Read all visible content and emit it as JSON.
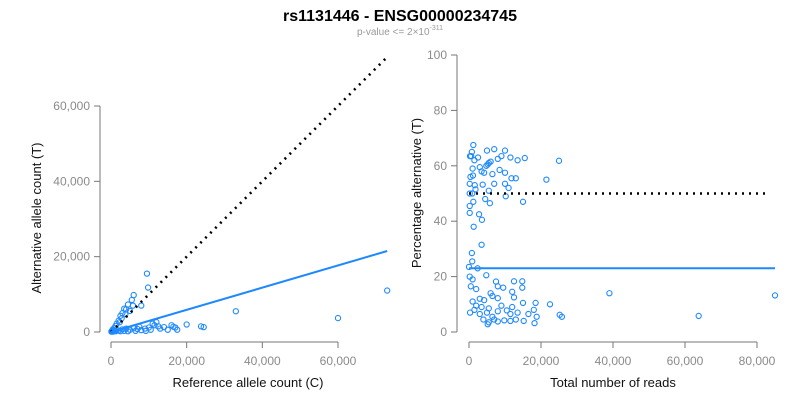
{
  "title": "rs1131446 - ENSG00000234745",
  "subtitle": {
    "prefix": "p-value <= 2",
    "times": "×",
    "base": "10",
    "exponent": "-311"
  },
  "colors": {
    "points": "#1e88ff",
    "fit": "#1e88ff",
    "reference": "#000000",
    "axis": "#777777",
    "tick_text": "#8a8a8a"
  },
  "chart_data": [
    {
      "type": "scatter",
      "xlabel": "Reference allele count (C)",
      "ylabel": "Alternative allele count (T)",
      "xlim": [
        0,
        73000
      ],
      "ylim": [
        0,
        73000
      ],
      "xticks": [
        0,
        20000,
        40000,
        60000
      ],
      "yticks": [
        0,
        20000,
        40000,
        60000
      ],
      "xtick_labels": [
        "0",
        "20,000",
        "40,000",
        "60,000"
      ],
      "ytick_labels": [
        "0",
        "20,000",
        "40,000",
        "60,000"
      ],
      "reference_line": {
        "style": "dotted",
        "from": [
          0,
          0
        ],
        "to": [
          73000,
          73000
        ]
      },
      "fit_line": {
        "style": "solid",
        "from": [
          0,
          0
        ],
        "to": [
          73000,
          21500
        ]
      },
      "points": [
        [
          9500,
          15500
        ],
        [
          9800,
          11800
        ],
        [
          6000,
          9800
        ],
        [
          5500,
          8500
        ],
        [
          4500,
          7300
        ],
        [
          5800,
          7000
        ],
        [
          8000,
          7000
        ],
        [
          3500,
          6200
        ],
        [
          4000,
          6000
        ],
        [
          5000,
          5600
        ],
        [
          3000,
          5000
        ],
        [
          3800,
          4700
        ],
        [
          2500,
          4300
        ],
        [
          2800,
          3600
        ],
        [
          2000,
          3000
        ],
        [
          2300,
          2600
        ],
        [
          1500,
          2200
        ],
        [
          1200,
          1600
        ],
        [
          800,
          1000
        ],
        [
          500,
          700
        ],
        [
          300,
          400
        ],
        [
          200,
          200
        ],
        [
          100,
          100
        ],
        [
          1000,
          300
        ],
        [
          1500,
          500
        ],
        [
          2000,
          400
        ],
        [
          3000,
          700
        ],
        [
          4000,
          900
        ],
        [
          5000,
          600
        ],
        [
          6000,
          1000
        ],
        [
          7000,
          800
        ],
        [
          8000,
          500
        ],
        [
          9000,
          900
        ],
        [
          10000,
          1200
        ],
        [
          11000,
          2200
        ],
        [
          12000,
          2600
        ],
        [
          12500,
          1500
        ],
        [
          13000,
          900
        ],
        [
          14000,
          1300
        ],
        [
          15000,
          600
        ],
        [
          16000,
          1800
        ],
        [
          16500,
          1400
        ],
        [
          17500,
          600
        ],
        [
          17000,
          1200
        ],
        [
          20000,
          2000
        ],
        [
          23800,
          1500
        ],
        [
          24500,
          1300
        ],
        [
          33000,
          5500
        ],
        [
          60000,
          3700
        ],
        [
          73000,
          11000
        ],
        [
          6500,
          300
        ],
        [
          7500,
          1400
        ],
        [
          9200,
          300
        ],
        [
          10500,
          600
        ],
        [
          11500,
          1800
        ],
        [
          500,
          100
        ],
        [
          1200,
          200
        ],
        [
          2500,
          200
        ],
        [
          3500,
          300
        ],
        [
          4500,
          200
        ]
      ]
    },
    {
      "type": "scatter",
      "xlabel": "Total number of reads",
      "ylabel": "Percentage alternative (T)",
      "xlim": [
        0,
        85000
      ],
      "ylim": [
        0,
        100
      ],
      "xticks": [
        0,
        20000,
        40000,
        60000,
        80000
      ],
      "yticks": [
        0,
        20,
        40,
        60,
        80,
        100
      ],
      "xtick_labels": [
        "0",
        "20,000",
        "40,000",
        "60,000",
        "80,000"
      ],
      "ytick_labels": [
        "0",
        "20",
        "40",
        "60",
        "80",
        "100"
      ],
      "reference_line": {
        "style": "dotted",
        "y": 50,
        "x_range": [
          0,
          83000
        ]
      },
      "fit_line": {
        "style": "solid",
        "y": 23,
        "x_range": [
          0,
          85000
        ]
      },
      "points": [
        [
          1200,
          67.5
        ],
        [
          7000,
          66
        ],
        [
          5000,
          65.5
        ],
        [
          10000,
          65.5
        ],
        [
          800,
          65
        ],
        [
          300,
          63.5
        ],
        [
          600,
          63.5
        ],
        [
          2500,
          63
        ],
        [
          11500,
          63
        ],
        [
          15500,
          62.8
        ],
        [
          13500,
          62
        ],
        [
          25000,
          61.8
        ],
        [
          1500,
          62
        ],
        [
          9000,
          63.5
        ],
        [
          8000,
          62.5
        ],
        [
          5500,
          61
        ],
        [
          6000,
          61.5
        ],
        [
          4800,
          60
        ],
        [
          5200,
          60.5
        ],
        [
          3000,
          59.5
        ],
        [
          1000,
          59
        ],
        [
          8500,
          58.5
        ],
        [
          3500,
          58
        ],
        [
          4200,
          57.5
        ],
        [
          6500,
          57
        ],
        [
          10000,
          57.5
        ],
        [
          11800,
          55.5
        ],
        [
          13000,
          55.5
        ],
        [
          21500,
          55
        ],
        [
          1100,
          56.5
        ],
        [
          400,
          56
        ],
        [
          200,
          53.5
        ],
        [
          1600,
          53
        ],
        [
          3800,
          53.2
        ],
        [
          7000,
          53.5
        ],
        [
          10000,
          53.5
        ],
        [
          11000,
          52
        ],
        [
          1800,
          51.5
        ],
        [
          5500,
          51
        ],
        [
          200,
          50
        ],
        [
          900,
          50
        ],
        [
          10200,
          49
        ],
        [
          4500,
          48
        ],
        [
          15000,
          47
        ],
        [
          5800,
          46.5
        ],
        [
          1200,
          47
        ],
        [
          200,
          45.5
        ],
        [
          200,
          43
        ],
        [
          2800,
          42.5
        ],
        [
          3600,
          40.5
        ],
        [
          1300,
          38
        ],
        [
          3500,
          31.5
        ],
        [
          800,
          28.5
        ],
        [
          900,
          25.5
        ],
        [
          0,
          23.5
        ],
        [
          2400,
          23
        ],
        [
          4800,
          20.5
        ],
        [
          200,
          20
        ],
        [
          1000,
          19
        ],
        [
          7500,
          18.2
        ],
        [
          12500,
          18.3
        ],
        [
          14800,
          18.3
        ],
        [
          8000,
          16.5
        ],
        [
          9500,
          16
        ],
        [
          14800,
          16
        ],
        [
          500,
          16.5
        ],
        [
          2000,
          15.5
        ],
        [
          6000,
          14
        ],
        [
          12000,
          14.5
        ],
        [
          39000,
          14
        ],
        [
          85000,
          13.2
        ],
        [
          3000,
          12
        ],
        [
          6500,
          13
        ],
        [
          8000,
          12.2
        ],
        [
          12500,
          12.5
        ],
        [
          1000,
          11
        ],
        [
          4200,
          11.5
        ],
        [
          15000,
          10.5
        ],
        [
          18500,
          10.5
        ],
        [
          22500,
          10
        ],
        [
          2000,
          9.5
        ],
        [
          3500,
          9
        ],
        [
          5500,
          8.5
        ],
        [
          9000,
          9.5
        ],
        [
          12000,
          9
        ],
        [
          1500,
          8
        ],
        [
          5000,
          7
        ],
        [
          8000,
          7.5
        ],
        [
          10500,
          7.8
        ],
        [
          13500,
          7
        ],
        [
          18000,
          8
        ],
        [
          300,
          7
        ],
        [
          3000,
          6.5
        ],
        [
          6500,
          5.5
        ],
        [
          11500,
          6.5
        ],
        [
          16500,
          6.5
        ],
        [
          25200,
          6.2
        ],
        [
          18800,
          5.5
        ],
        [
          25800,
          5.5
        ],
        [
          63800,
          5.8
        ],
        [
          4000,
          4.5
        ],
        [
          7000,
          4.5
        ],
        [
          9800,
          4.2
        ],
        [
          13000,
          4.5
        ],
        [
          15200,
          4
        ],
        [
          5500,
          3.5
        ],
        [
          8000,
          3.8
        ],
        [
          11500,
          4
        ],
        [
          18200,
          3.2
        ],
        [
          5200,
          2.8
        ]
      ]
    }
  ]
}
